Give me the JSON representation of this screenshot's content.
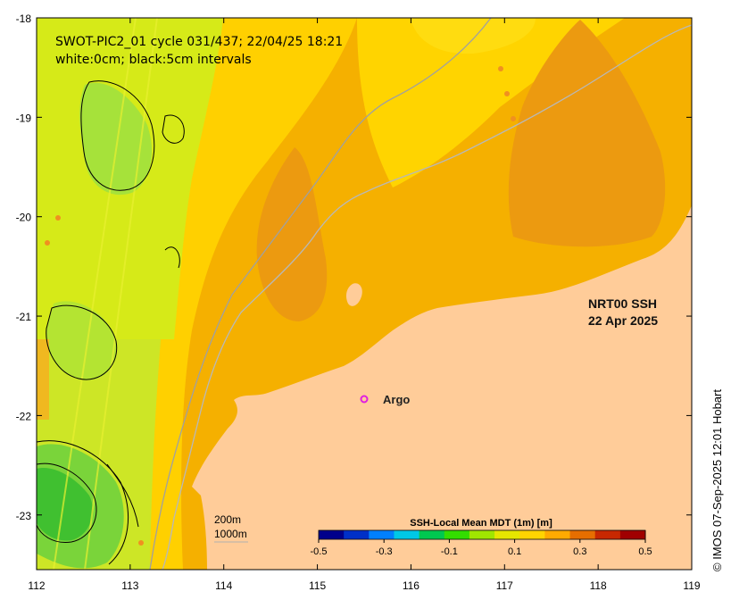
{
  "title_line1": "SWOT-PIC2_01 cycle 031/437; 22/04/25 18:21",
  "title_line2": "white:0cm; black:5cm intervals",
  "product_line1": "NRT00 SSH",
  "product_line2": "22 Apr 2025",
  "argo_label": "Argo",
  "contour_label_200": "200m",
  "contour_label_1000": "1000m",
  "colorbar_title": "SSH-Local Mean MDT (1m) [m]",
  "colorbar_ticks": [
    "-0.5",
    "-0.3",
    "-0.1",
    "0.1",
    "0.3",
    "0.5"
  ],
  "colorbar_colors": [
    "#00008b",
    "#0030c8",
    "#0080ff",
    "#00c8e6",
    "#00c850",
    "#33dd00",
    "#a0e600",
    "#e6e600",
    "#ffd400",
    "#ffaa00",
    "#e66e00",
    "#c82800",
    "#a00000"
  ],
  "credit": "© IMOS 07-Sep-2025 12:01 Hobart",
  "x_ticks": [
    "112",
    "113",
    "114",
    "115",
    "116",
    "117",
    "118",
    "119"
  ],
  "y_ticks": [
    "-18",
    "-19",
    "-20",
    "-21",
    "-22",
    "-23"
  ],
  "colors": {
    "land": "#ffcc99",
    "sea_orange": "#f5b000",
    "sea_dark": "#ec9a10",
    "sea_yellow": "#ffd400",
    "sea_lime": "#d8ec20",
    "sea_green": "#a0e040",
    "sea_deep_green": "#40c030",
    "argo": "#e020e0"
  }
}
